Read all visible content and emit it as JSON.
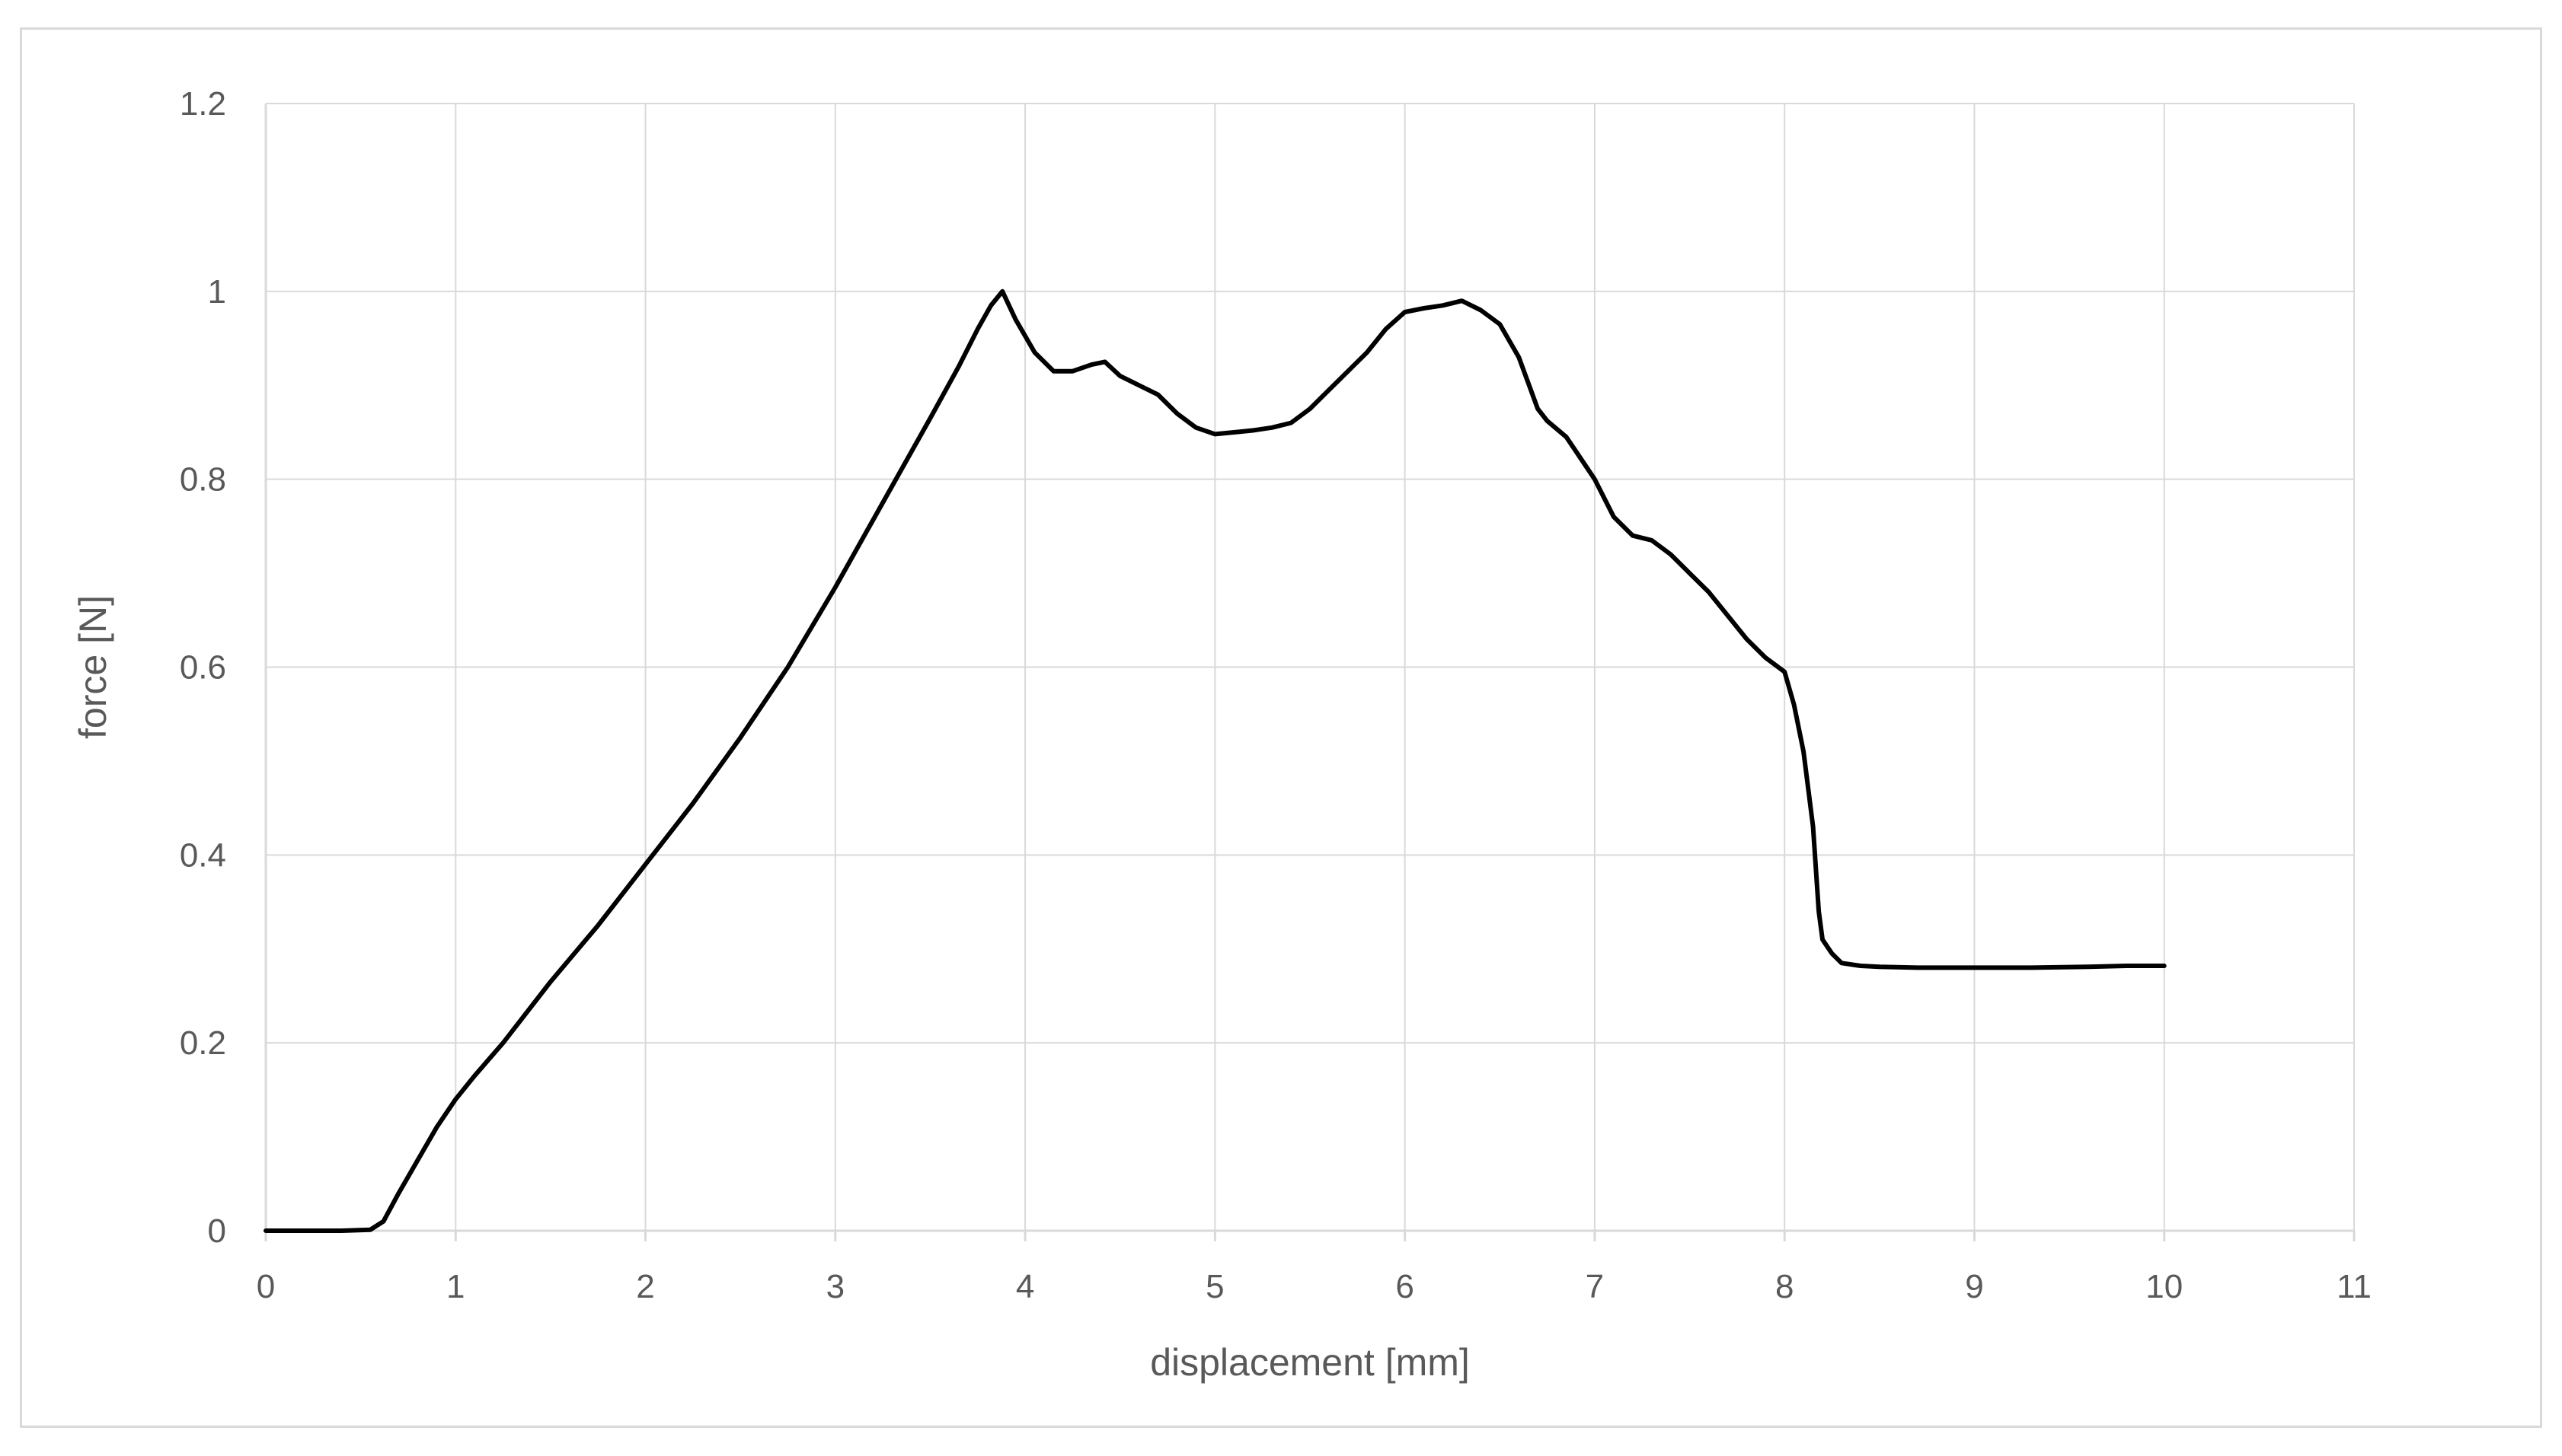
{
  "chart_data": {
    "type": "line",
    "title": "",
    "xlabel": "displacement [mm]",
    "ylabel": "force [N]",
    "xlim": [
      0,
      11
    ],
    "ylim": [
      0,
      1.2
    ],
    "x_ticks": [
      "0",
      "1",
      "2",
      "3",
      "4",
      "5",
      "6",
      "7",
      "8",
      "9",
      "10",
      "11"
    ],
    "y_ticks": [
      "0",
      "0.2",
      "0.4",
      "0.6",
      "0.8",
      "1",
      "1.2"
    ],
    "x_tick_values": [
      0,
      1,
      2,
      3,
      4,
      5,
      6,
      7,
      8,
      9,
      10,
      11
    ],
    "y_tick_values": [
      0,
      0.2,
      0.4,
      0.6,
      0.8,
      1.0,
      1.2
    ],
    "grid": true,
    "legend": "none",
    "series": [
      {
        "color": "#000000",
        "x": [
          0,
          0.2,
          0.4,
          0.55,
          0.62,
          0.7,
          0.8,
          0.9,
          1.0,
          1.1,
          1.25,
          1.5,
          1.75,
          2.0,
          2.25,
          2.5,
          2.75,
          3.0,
          3.25,
          3.5,
          3.65,
          3.75,
          3.82,
          3.88,
          3.95,
          4.05,
          4.15,
          4.25,
          4.35,
          4.42,
          4.5,
          4.6,
          4.7,
          4.8,
          4.9,
          5.0,
          5.1,
          5.2,
          5.3,
          5.4,
          5.5,
          5.6,
          5.7,
          5.8,
          5.9,
          6.0,
          6.1,
          6.2,
          6.3,
          6.4,
          6.5,
          6.6,
          6.7,
          6.75,
          6.85,
          6.9,
          7.0,
          7.1,
          7.2,
          7.3,
          7.4,
          7.5,
          7.6,
          7.7,
          7.8,
          7.9,
          8.0,
          8.05,
          8.1,
          8.15,
          8.18,
          8.2,
          8.25,
          8.3,
          8.4,
          8.5,
          8.7,
          9.0,
          9.3,
          9.6,
          9.8,
          10.0
        ],
        "values": [
          0.0,
          0.0,
          0.0,
          0.001,
          0.01,
          0.04,
          0.075,
          0.11,
          0.14,
          0.165,
          0.2,
          0.265,
          0.325,
          0.39,
          0.455,
          0.525,
          0.6,
          0.685,
          0.775,
          0.865,
          0.92,
          0.96,
          0.985,
          1.0,
          0.97,
          0.935,
          0.915,
          0.915,
          0.922,
          0.925,
          0.91,
          0.9,
          0.89,
          0.87,
          0.855,
          0.848,
          0.85,
          0.852,
          0.855,
          0.86,
          0.875,
          0.895,
          0.915,
          0.935,
          0.96,
          0.978,
          0.982,
          0.985,
          0.99,
          0.98,
          0.965,
          0.93,
          0.875,
          0.862,
          0.845,
          0.83,
          0.8,
          0.76,
          0.74,
          0.735,
          0.72,
          0.7,
          0.68,
          0.655,
          0.63,
          0.61,
          0.595,
          0.56,
          0.51,
          0.43,
          0.34,
          0.31,
          0.295,
          0.285,
          0.282,
          0.281,
          0.28,
          0.28,
          0.28,
          0.281,
          0.282,
          0.282
        ]
      }
    ]
  }
}
